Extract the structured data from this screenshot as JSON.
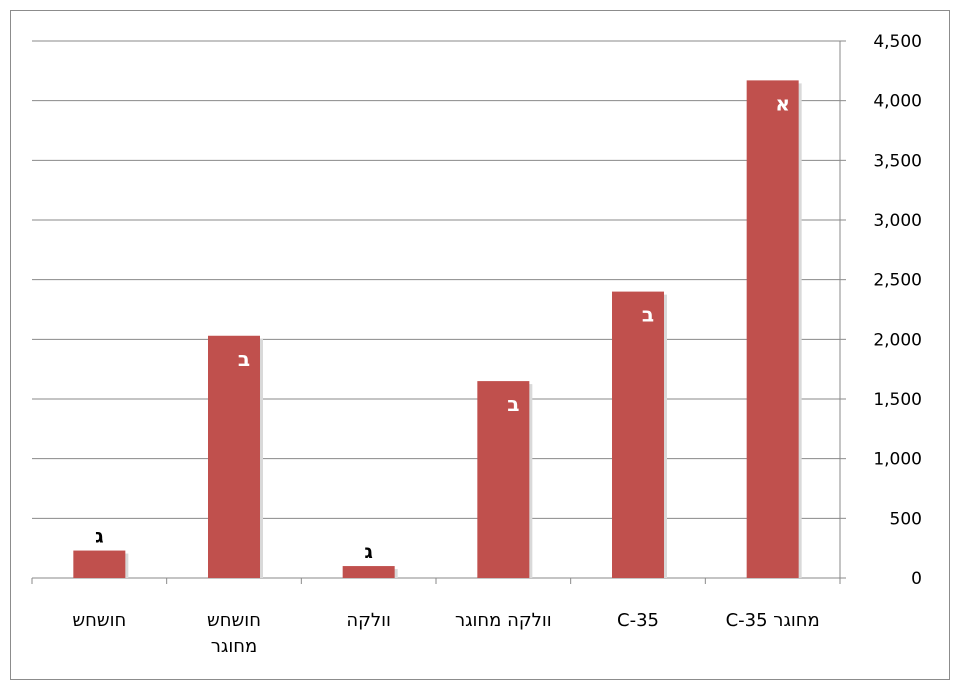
{
  "chart_data": {
    "type": "bar",
    "categories": [
      [
        "חושחש"
      ],
      [
        "חושחש",
        "מחוגר"
      ],
      [
        "וולקה"
      ],
      [
        "וולקה מחוגר"
      ],
      [
        "C-35"
      ],
      [
        "C-35 מחוגר"
      ]
    ],
    "values": [
      230,
      2030,
      100,
      1650,
      2400,
      4170
    ],
    "bar_labels": [
      "ג",
      "ב",
      "ג",
      "ב",
      "ב",
      "א"
    ],
    "y_ticks": [
      "0",
      "500",
      "1,000",
      "1,500",
      "2,000",
      "2,500",
      "3,000",
      "3,500",
      "4,000",
      "4,500"
    ],
    "ylim": [
      0,
      4500
    ],
    "y_axis_side": "right",
    "gridlines": true,
    "legend": "none",
    "bar_color": "#c0504d",
    "title": "",
    "xlabel": "",
    "ylabel": ""
  }
}
